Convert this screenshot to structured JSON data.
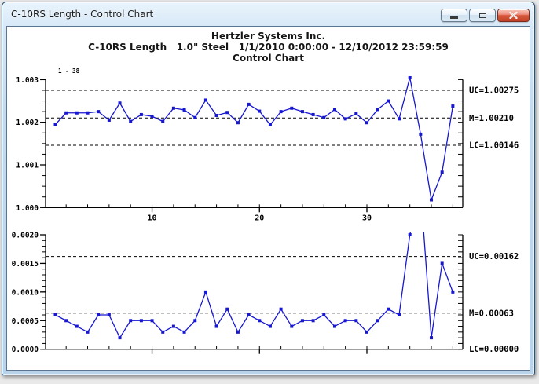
{
  "window": {
    "title": "C-10RS Length - Control Chart",
    "controls": {
      "minimize": "minimize-button",
      "maximize": "maximize-button",
      "close": "close-button"
    }
  },
  "header": {
    "company": "Hertzler Systems Inc.",
    "subtitle": "C-10RS Length   1.0\" Steel   1/1/2010 0:00:00 - 12/10/2012 23:59:59",
    "report_type": "Control Chart"
  },
  "colors": {
    "series_blue": "#1717d1",
    "limit_line": "#000000",
    "titlebar_glass": "#c3daee",
    "close_button_red": "#d95b3e",
    "client_background": "#ffffff"
  },
  "chart_data": [
    {
      "type": "line",
      "name": "individuals-chart",
      "annotation": "1 - 38",
      "marker": "square",
      "line_color": "#1717d1",
      "x": [
        1,
        2,
        3,
        4,
        5,
        6,
        7,
        8,
        9,
        10,
        11,
        12,
        13,
        14,
        15,
        16,
        17,
        18,
        19,
        20,
        21,
        22,
        23,
        24,
        25,
        26,
        27,
        28,
        29,
        30,
        31,
        32,
        33,
        34,
        35,
        36,
        37,
        38
      ],
      "values": [
        1.00195,
        1.00222,
        1.00222,
        1.00222,
        1.00225,
        1.00205,
        1.00245,
        1.00202,
        1.00218,
        1.00214,
        1.00202,
        1.00233,
        1.00229,
        1.00211,
        1.00252,
        1.00216,
        1.00223,
        1.00199,
        1.00242,
        1.00226,
        1.00194,
        1.00225,
        1.00233,
        1.00225,
        1.00218,
        1.00211,
        1.0023,
        1.00208,
        1.0022,
        1.00199,
        1.0023,
        1.0025,
        1.00208,
        1.00305,
        1.00172,
        1.00018,
        1.00083,
        1.00238
      ],
      "ylim": [
        1.0,
        1.003
      ],
      "ytick_labels": [
        "1.000",
        "1.001",
        "1.002",
        "1.003"
      ],
      "ytick_step": 0.001,
      "yminor_step": 0.00025,
      "xtick_labels": [
        "10",
        "20",
        "30"
      ],
      "xtick_positions": [
        10,
        20,
        30
      ],
      "grid": "off",
      "limits": [
        {
          "id": "uc",
          "label": "UC=1.00275",
          "value": 1.00275
        },
        {
          "id": "m",
          "label": "M=1.00210",
          "value": 1.0021
        },
        {
          "id": "lc",
          "label": "LC=1.00146",
          "value": 1.00146
        }
      ]
    },
    {
      "type": "line",
      "name": "moving-range-chart",
      "annotation": "",
      "marker": "square",
      "line_color": "#1717d1",
      "x": [
        1,
        2,
        3,
        4,
        5,
        6,
        7,
        8,
        9,
        10,
        11,
        12,
        13,
        14,
        15,
        16,
        17,
        18,
        19,
        20,
        21,
        22,
        23,
        24,
        25,
        26,
        27,
        28,
        29,
        30,
        31,
        32,
        33,
        34,
        35,
        36,
        37,
        38
      ],
      "values": [
        0.0006,
        0.0005,
        0.0004,
        0.0003,
        0.0006,
        0.0006,
        0.0002,
        0.0005,
        0.0005,
        0.0005,
        0.0003,
        0.0004,
        0.0003,
        0.0005,
        0.001,
        0.0004,
        0.0007,
        0.0003,
        0.0006,
        0.0005,
        0.0004,
        0.0007,
        0.0004,
        0.0005,
        0.0005,
        0.0006,
        0.0004,
        0.0005,
        0.0005,
        0.0003,
        0.0005,
        0.0007,
        0.0006,
        0.002,
        0.0028,
        0.0002,
        0.0015,
        0.001
      ],
      "ylim": [
        0.0,
        0.002
      ],
      "ytick_labels": [
        "0.0000",
        "0.0005",
        "0.0010",
        "0.0015",
        "0.0020"
      ],
      "ytick_step": 0.0005,
      "yminor_step": 0.0001,
      "xtick_labels": [],
      "xtick_positions": [
        10,
        20,
        30
      ],
      "grid": "off",
      "limits": [
        {
          "id": "uc",
          "label": "UC=0.00162",
          "value": 0.00162
        },
        {
          "id": "m",
          "label": "M=0.00063",
          "value": 0.00063
        },
        {
          "id": "lc",
          "label": "LC=0.00000",
          "value": 0.0
        }
      ]
    }
  ]
}
